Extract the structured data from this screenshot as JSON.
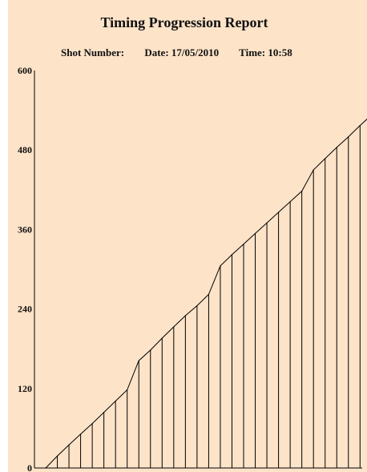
{
  "report": {
    "title": "Timing Progression Report",
    "shot_label": "Shot Number:",
    "date_label": "Date: 17/05/2010",
    "time_label": "Time: 10:58"
  },
  "colors": {
    "background": "#fde3c8",
    "line": "#000000"
  },
  "chart_data": {
    "type": "line",
    "title": "Timing Progression Report",
    "xlabel": "",
    "ylabel": "",
    "ylim": [
      0,
      600
    ],
    "yticks": [
      0,
      120,
      240,
      360,
      480,
      600
    ],
    "grid": false,
    "legend": "none",
    "x": [
      0,
      1,
      2,
      3,
      4,
      5,
      6,
      7,
      8,
      9,
      10,
      11,
      12,
      13,
      14,
      15,
      16,
      17,
      18,
      19,
      20,
      21,
      22,
      23,
      24,
      25,
      26,
      27,
      28,
      29
    ],
    "series": [
      {
        "values": [
          0,
          18,
          35,
          51,
          67,
          84,
          101,
          118,
          162,
          178,
          196,
          213,
          230,
          245,
          262,
          305,
          322,
          338,
          354,
          370,
          386,
          402,
          418,
          450,
          467,
          484,
          500,
          517,
          533,
          546
        ]
      }
    ]
  }
}
